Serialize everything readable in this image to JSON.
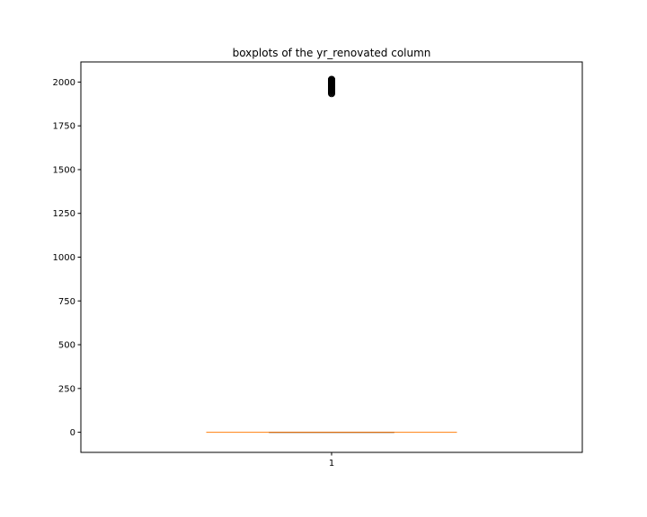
{
  "chart_data": {
    "type": "box",
    "title": "boxplots of the yr_renovated column",
    "xlabel": "",
    "ylabel": "",
    "categories": [
      "1"
    ],
    "ylim": [
      -115,
      2115
    ],
    "yticks": [
      0,
      250,
      500,
      750,
      1000,
      1250,
      1500,
      1750,
      2000
    ],
    "boxes": [
      {
        "category": "1",
        "whisker_low": 0,
        "q1": 0,
        "median": 0,
        "q3": 0,
        "whisker_high": 0,
        "outliers": [
          1934,
          1940,
          1945,
          1950,
          1953,
          1955,
          1956,
          1958,
          1960,
          1962,
          1963,
          1964,
          1965,
          1967,
          1968,
          1969,
          1970,
          1971,
          1972,
          1973,
          1974,
          1975,
          1976,
          1977,
          1978,
          1979,
          1980,
          1981,
          1982,
          1983,
          1984,
          1985,
          1986,
          1987,
          1988,
          1989,
          1990,
          1991,
          1992,
          1993,
          1994,
          1995,
          1996,
          1997,
          1998,
          1999,
          2000,
          2001,
          2002,
          2003,
          2004,
          2005,
          2006,
          2007,
          2008,
          2009,
          2010,
          2011,
          2012,
          2013,
          2014,
          2015
        ]
      }
    ],
    "colors": {
      "median": "#ff7f0e",
      "box": "#000000",
      "outlier": "#000000"
    }
  }
}
